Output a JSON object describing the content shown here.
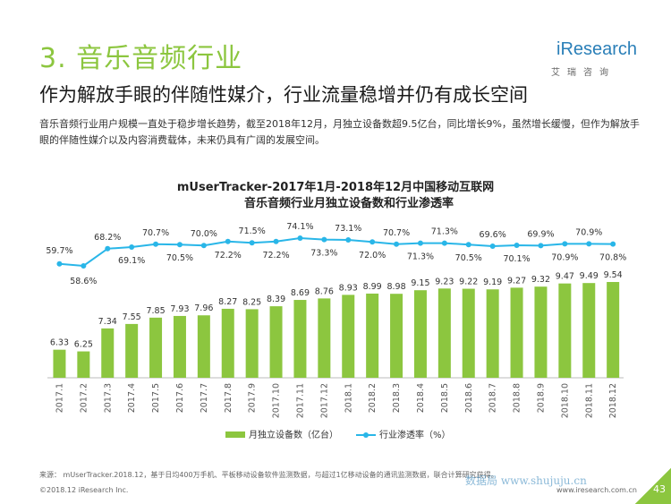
{
  "header": {
    "section_title": "3. 音乐音频行业",
    "logo_text": "iResearch",
    "logo_sub": "艾瑞咨询",
    "headline": "作为解放手眼的伴随性媒介，行业流量稳增并仍有成长空间",
    "summary": "音乐音频行业用户规模一直处于稳步增长趋势，截至2018年12月，月独立设备数超9.5亿台，同比增长9%，虽然增长缓慢，但作为解放手眼的伴随性媒介以及内容消费载体，未来仍具有广阔的发展空间。"
  },
  "chart_data": {
    "type": "bar",
    "title_line1": "mUserTracker-2017年1月-2018年12月中国移动互联网",
    "title_line2": "音乐音频行业月独立设备数和行业渗透率",
    "categories": [
      "2017.1",
      "2017.2",
      "2017.3",
      "2017.4",
      "2017.5",
      "2017.6",
      "2017.7",
      "2017.8",
      "2017.9",
      "2017.10",
      "2017.11",
      "2017.12",
      "2018.1",
      "2018.2",
      "2018.3",
      "2018.4",
      "2018.5",
      "2018.6",
      "2018.7",
      "2018.8",
      "2018.9",
      "2018.10",
      "2018.11",
      "2018.12"
    ],
    "series": [
      {
        "name": "月独立设备数（亿台）",
        "kind": "bar",
        "color": "#8cc63f",
        "values": [
          6.33,
          6.25,
          7.34,
          7.55,
          7.85,
          7.93,
          7.96,
          8.27,
          8.25,
          8.39,
          8.69,
          8.76,
          8.93,
          8.99,
          8.98,
          9.15,
          9.23,
          9.22,
          9.19,
          9.27,
          9.32,
          9.47,
          9.49,
          9.54
        ],
        "labels": [
          "6.33",
          "6.25",
          "7.34",
          "7.55",
          "7.85",
          "7.93",
          "7.96",
          "8.27",
          "8.25",
          "8.39",
          "8.69",
          "8.76",
          "8.93",
          "8.99",
          "8.98",
          "9.15",
          "9.23",
          "9.22",
          "9.19",
          "9.27",
          "9.32",
          "9.47",
          "9.49",
          "9.54"
        ]
      },
      {
        "name": "行业渗透率（%）",
        "kind": "line",
        "color": "#29b6e8",
        "values": [
          59.7,
          58.6,
          68.2,
          69.1,
          70.7,
          70.5,
          70.0,
          72.2,
          71.5,
          72.2,
          74.1,
          73.3,
          73.1,
          72.0,
          70.7,
          71.3,
          71.3,
          70.5,
          69.6,
          70.1,
          69.9,
          70.9,
          70.9,
          70.8
        ],
        "labels": [
          "59.7%",
          "58.6%",
          "68.2%",
          "69.1%",
          "70.7%",
          "70.5%",
          "70.0%",
          "72.2%",
          "71.5%",
          "72.2%",
          "74.1%",
          "73.3%",
          "73.1%",
          "72.0%",
          "70.7%",
          "71.3%",
          "71.3%",
          "70.5%",
          "69.6%",
          "70.1%",
          "69.9%",
          "70.9%",
          "70.9%",
          "70.8%"
        ]
      }
    ],
    "legend_position": "bottom",
    "grid": false
  },
  "footer": {
    "source": "来源： mUserTracker.2018.12，基于日均400万手机、平板移动设备软件监测数据，与超过1亿移动设备的通讯监测数据，联合计算研究获得。",
    "copyright": "©2018.12 iResearch Inc.",
    "url": "www.iresearch.com.cn",
    "page_number": "43",
    "watermark": "数据局 www.shujuju.cn"
  }
}
